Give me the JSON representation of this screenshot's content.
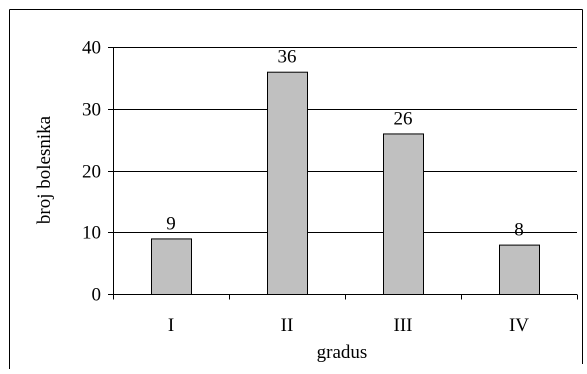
{
  "chart_data": {
    "type": "bar",
    "categories": [
      "I",
      "II",
      "III",
      "IV"
    ],
    "values": [
      9,
      36,
      26,
      8
    ],
    "data_labels": [
      "9",
      "36",
      "26",
      "8"
    ],
    "xlabel": "gradus",
    "ylabel": "broj bolesnika",
    "ylim": [
      0,
      40
    ],
    "yticks": [
      0,
      10,
      20,
      30,
      40
    ],
    "ytick_labels": [
      "0",
      "10",
      "20",
      "30",
      "40"
    ],
    "grid": true,
    "legend": "none",
    "colors": {
      "bar_fill": "#c0c0c0",
      "bar_stroke": "#000000",
      "gridline": "#000000"
    }
  }
}
